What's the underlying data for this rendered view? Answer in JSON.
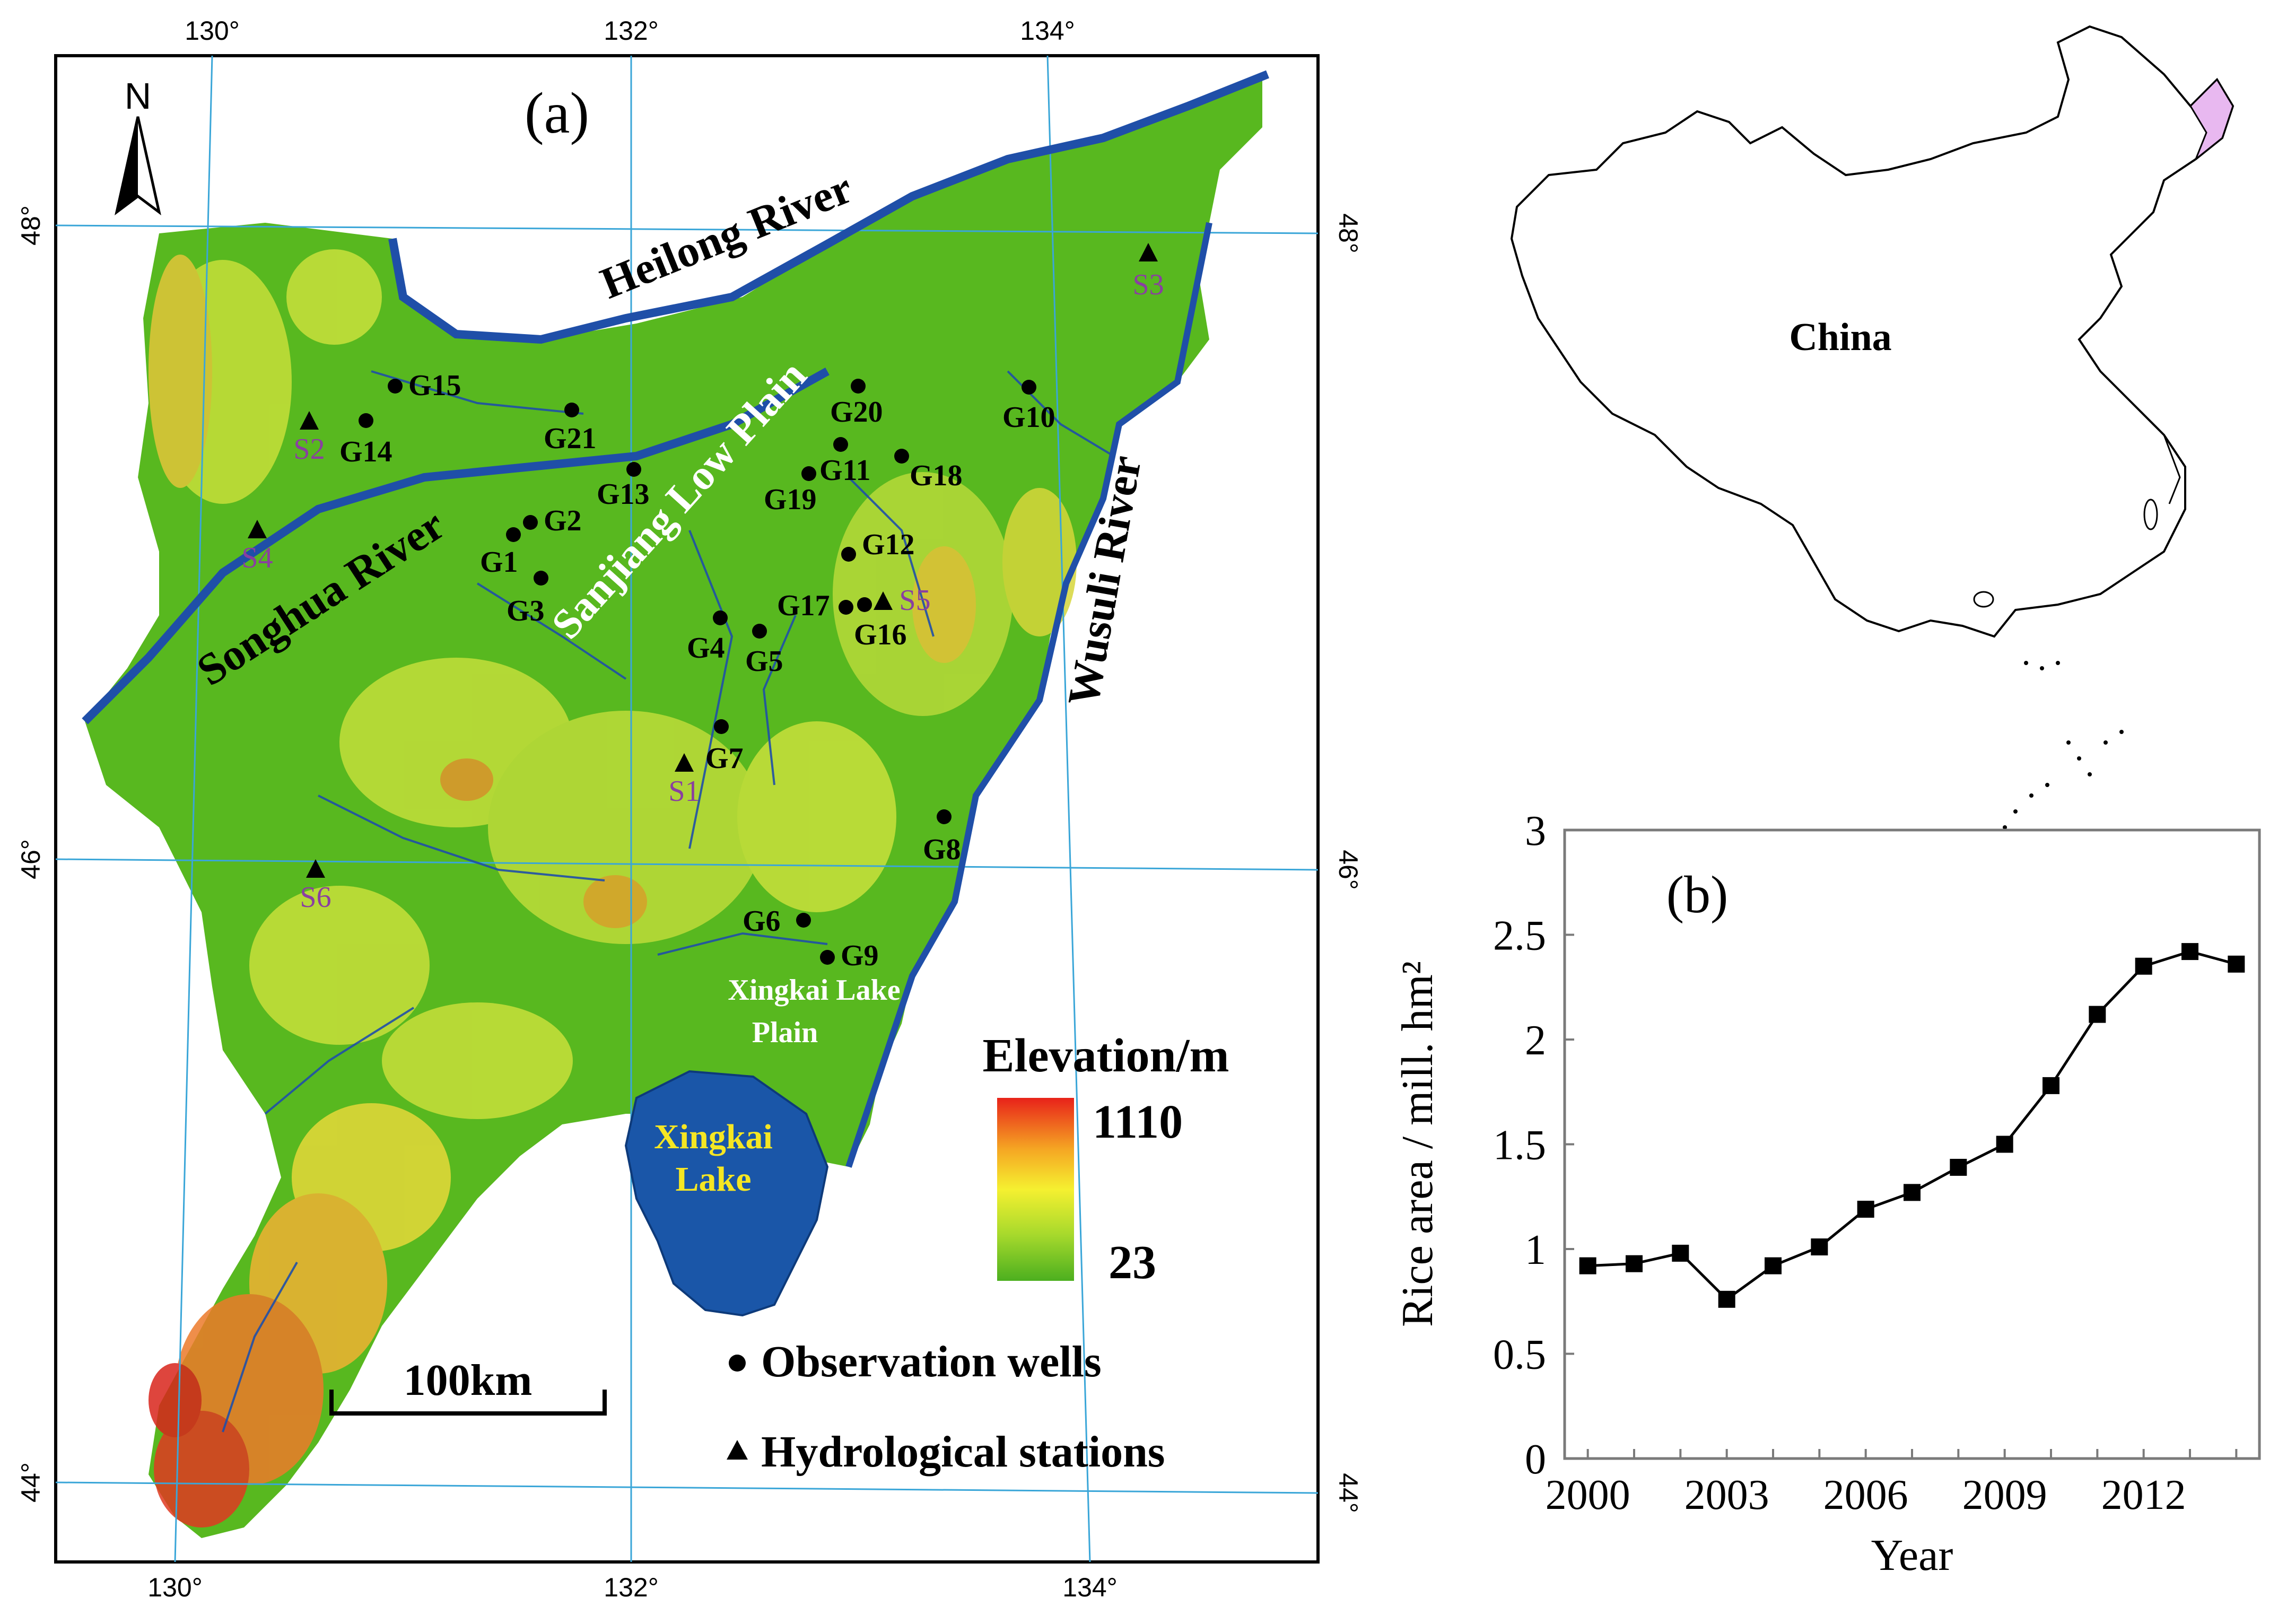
{
  "panel_a": {
    "label": "(a)",
    "north_label": "N",
    "lon_labels": [
      "130°",
      "132°",
      "134°"
    ],
    "lat_labels": [
      "48°",
      "46°",
      "44°"
    ],
    "rivers": {
      "heilong": "Heilong River",
      "songhua": "Songhua River",
      "wusuli": "Wusuli River"
    },
    "regions": {
      "sanjiang": "Sanjiang Low Plain",
      "xingkai_plain_line1": "Xingkai Lake",
      "xingkai_plain_line2": "Plain",
      "lake_line1": "Xingkai",
      "lake_line2": "Lake"
    },
    "wells": [
      "G1",
      "G2",
      "G3",
      "G4",
      "G5",
      "G6",
      "G7",
      "G8",
      "G9",
      "G10",
      "G11",
      "G12",
      "G13",
      "G14",
      "G15",
      "G16",
      "G17",
      "G18",
      "G19",
      "G20",
      "G21"
    ],
    "stations": [
      "S1",
      "S2",
      "S3",
      "S4",
      "S5",
      "S6"
    ],
    "legend": {
      "title": "Elevation/m",
      "max": "1110",
      "min": "23",
      "wells_label": "Observation wells",
      "stations_label": "Hydrological stations",
      "colors": [
        "#e8221a",
        "#f5a623",
        "#f5f030",
        "#a6d92c",
        "#4caf1f"
      ]
    },
    "scale_bar": "100km"
  },
  "inset": {
    "country_label": "China",
    "highlight_color": "#e8b8f0"
  },
  "panel_b": {
    "label": "(b)"
  },
  "chart_data": {
    "type": "line",
    "title": "",
    "xlabel": "Year",
    "ylabel": "Rice area / mill. hm²",
    "x": [
      2000,
      2001,
      2002,
      2003,
      2004,
      2005,
      2006,
      2007,
      2008,
      2009,
      2010,
      2011,
      2012,
      2013,
      2014
    ],
    "series": [
      {
        "values": [
          0.92,
          0.93,
          0.98,
          0.76,
          0.92,
          1.01,
          1.19,
          1.27,
          1.39,
          1.5,
          1.78,
          2.12,
          2.35,
          2.42,
          2.36
        ]
      }
    ],
    "xticks": [
      "2000",
      "2003",
      "2006",
      "2009",
      "2012"
    ],
    "yticks": [
      "0",
      "0.5",
      "1",
      "1.5",
      "2",
      "2.5",
      "3"
    ],
    "xlim": [
      1999.5,
      2014.5
    ],
    "ylim": [
      0,
      3
    ],
    "marker": "square",
    "grid": false,
    "legend": "none"
  }
}
